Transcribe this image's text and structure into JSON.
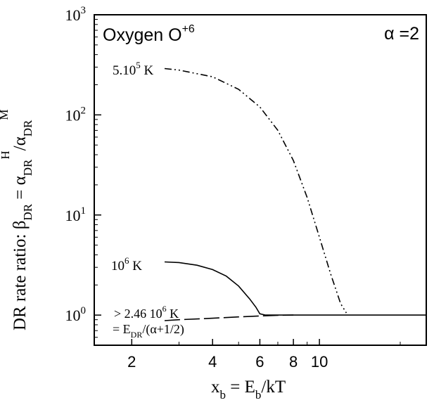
{
  "chart_data": {
    "type": "line",
    "x_scale": "log",
    "y_scale": "log",
    "xlim": [
      1.45,
      25
    ],
    "ylim": [
      0.5,
      1000
    ],
    "grid": false,
    "xlabel": {
      "main": "x",
      "sub1": "b",
      "mid": " = E",
      "sub2": "b",
      "tail": "/kT"
    },
    "ylabel": {
      "lead": "DR rate ratio:  β",
      "sub1": "DR",
      "mid": " = α",
      "sub2": "DR",
      "sup1": "H",
      "slash": "/α",
      "sub3": "DR",
      "sup2": "M"
    },
    "x_ticks": [
      {
        "value": 2,
        "label": "2"
      },
      {
        "value": 4,
        "label": "4"
      },
      {
        "value": 6,
        "label": "6"
      },
      {
        "value": 8,
        "label": "8"
      },
      {
        "value": 10,
        "label": "10"
      }
    ],
    "y_ticks": [
      {
        "value": 1,
        "base": "10",
        "exp": "0"
      },
      {
        "value": 10,
        "base": "10",
        "exp": "1"
      },
      {
        "value": 100,
        "base": "10",
        "exp": "2"
      },
      {
        "value": 1000,
        "base": "10",
        "exp": "3"
      }
    ],
    "title_box": {
      "text": "Oxygen O",
      "sup": "+6"
    },
    "param_box": "α =2",
    "series": [
      {
        "label_main": "5.10",
        "label_sup": "5",
        "label_tail": " K",
        "style": "dash-dot-dot",
        "x": [
          2.65,
          3.0,
          4.0,
          5.0,
          6.0,
          7.0,
          8.0,
          9.0,
          10.0,
          11.0,
          12.0,
          12.6
        ],
        "y": [
          290,
          280,
          240,
          180,
          120,
          70,
          35,
          15,
          6,
          2.6,
          1.3,
          1.05
        ]
      },
      {
        "label_main": "10",
        "label_sup": "6",
        "label_tail": " K",
        "style": "solid",
        "x": [
          2.65,
          3.0,
          3.5,
          4.0,
          4.5,
          5.0,
          5.5,
          5.8,
          6.0,
          6.3,
          7.0,
          8.0,
          10.0,
          15.0,
          25.0
        ],
        "y": [
          3.4,
          3.35,
          3.15,
          2.85,
          2.45,
          1.95,
          1.45,
          1.2,
          1.03,
          1.0,
          1.0,
          1.0,
          1.0,
          1.0,
          1.0
        ]
      },
      {
        "label_main": "> 2.46 10",
        "label_sup": "6",
        "label_tail": " K",
        "note_main": "= E",
        "note_sub": "DR",
        "note_tail": "/(α+1/2)",
        "style": "long-dash",
        "x": [
          2.65,
          3.0,
          4.0,
          5.0,
          6.0,
          7.0,
          8.0
        ],
        "y": [
          0.88,
          0.9,
          0.93,
          0.96,
          0.98,
          0.995,
          1.0
        ]
      }
    ]
  }
}
